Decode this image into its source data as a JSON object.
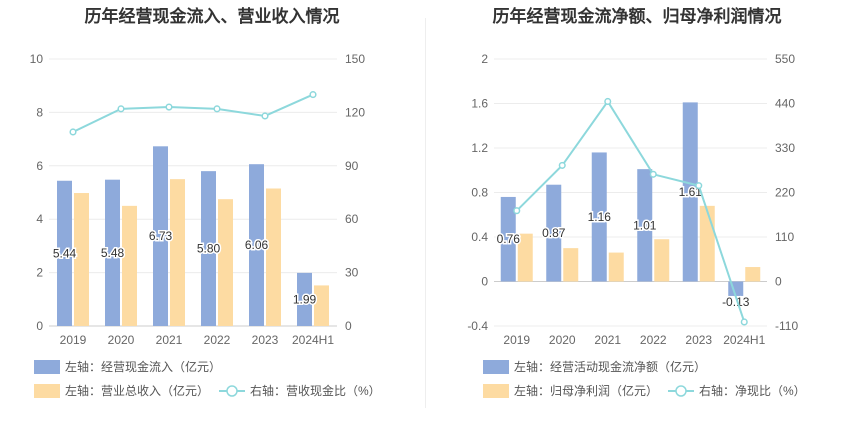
{
  "chart_data": [
    {
      "type": "bar+line",
      "title": "历年经营现金流入、营业收入情况",
      "categories": [
        "2019",
        "2020",
        "2021",
        "2022",
        "2023",
        "2024H1"
      ],
      "left_axis": {
        "min": 0,
        "max": 10,
        "ticks": [
          "0",
          "2",
          "4",
          "6",
          "8",
          "10"
        ]
      },
      "right_axis": {
        "min": 0,
        "max": 150,
        "ticks": [
          "0",
          "30",
          "60",
          "90",
          "120",
          "150"
        ]
      },
      "series": [
        {
          "name": "左轴：经营现金流入（亿元）",
          "type": "bar",
          "axis": "left",
          "color": "#8eaadb",
          "values": [
            5.44,
            5.48,
            6.73,
            5.8,
            6.06,
            1.99
          ],
          "labels": [
            "5.44",
            "5.48",
            "6.73",
            "5.80",
            "6.06",
            "1.99"
          ]
        },
        {
          "name": "左轴：营业总收入（亿元）",
          "type": "bar",
          "axis": "left",
          "color": "#fddba2",
          "values": [
            4.98,
            4.5,
            5.5,
            4.75,
            5.15,
            1.52
          ]
        },
        {
          "name": "右轴：营收现金比（%）",
          "type": "line",
          "axis": "right",
          "color": "#8dd8dc",
          "values": [
            109,
            122,
            123,
            122,
            118,
            130
          ]
        }
      ],
      "legend_position": "bottom",
      "grid": true
    },
    {
      "type": "bar+line",
      "title": "历年经营现金流净额、归母净利润情况",
      "categories": [
        "2019",
        "2020",
        "2021",
        "2022",
        "2023",
        "2024H1"
      ],
      "left_axis": {
        "min": -0.4,
        "max": 2,
        "ticks": [
          "-0.4",
          "0",
          "0.4",
          "0.8",
          "1.2",
          "1.6",
          "2"
        ]
      },
      "right_axis": {
        "min": -110,
        "max": 550,
        "ticks": [
          "-110",
          "0",
          "110",
          "220",
          "330",
          "440",
          "550"
        ]
      },
      "series": [
        {
          "name": "左轴：经营活动现金流净额（亿元）",
          "type": "bar",
          "axis": "left",
          "color": "#8eaadb",
          "values": [
            0.76,
            0.87,
            1.16,
            1.01,
            1.61,
            -0.13
          ],
          "labels": [
            "0.76",
            "0.87",
            "1.16",
            "1.01",
            "1.61",
            "-0.13"
          ]
        },
        {
          "name": "左轴：归母净利润（亿元）",
          "type": "bar",
          "axis": "left",
          "color": "#fddba2",
          "values": [
            0.43,
            0.3,
            0.26,
            0.38,
            0.68,
            0.13
          ]
        },
        {
          "name": "右轴：净现比（%）",
          "type": "line",
          "axis": "right",
          "color": "#8dd8dc",
          "values": [
            175,
            287,
            445,
            265,
            237,
            -100
          ]
        }
      ],
      "legend_position": "bottom",
      "grid": true
    }
  ]
}
